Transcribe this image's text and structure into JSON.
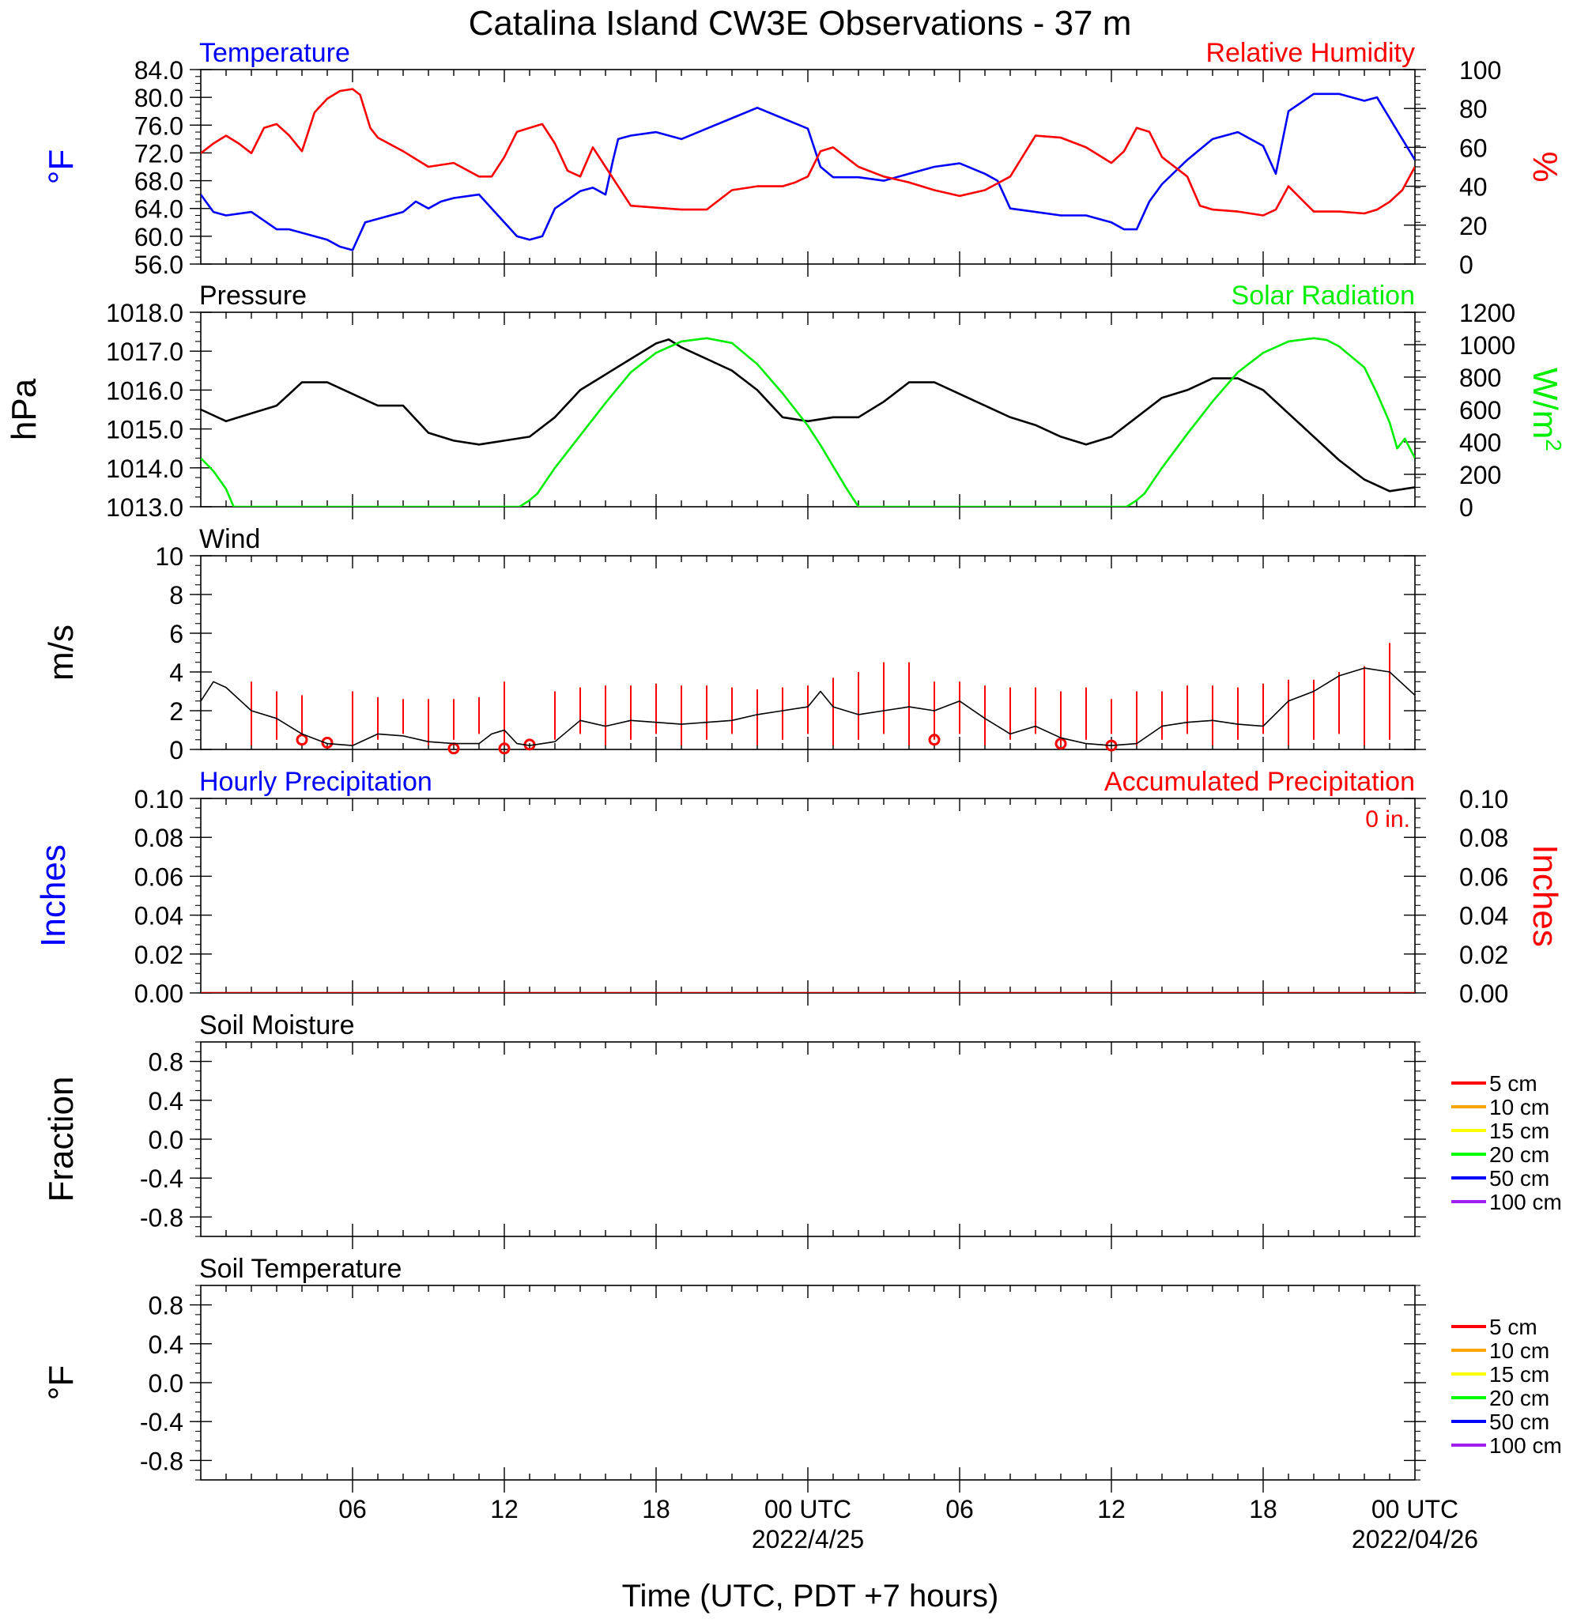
{
  "title": "Catalina Island CW3E Observations - 37 m",
  "xaxis": {
    "label": "Time (UTC, PDT +7 hours)",
    "range_hours": [
      0,
      48
    ],
    "ticks": [
      {
        "h": 6,
        "label": "06"
      },
      {
        "h": 12,
        "label": "12"
      },
      {
        "h": 18,
        "label": "18"
      },
      {
        "h": 24,
        "label": "00 UTC",
        "sub": "2022/4/25"
      },
      {
        "h": 30,
        "label": "06"
      },
      {
        "h": 36,
        "label": "12"
      },
      {
        "h": 42,
        "label": "18"
      },
      {
        "h": 48,
        "label": "00 UTC",
        "sub": "2022/04/26"
      }
    ]
  },
  "chart_data": [
    {
      "panel": "temperature_humidity",
      "type": "line",
      "title_left": "Temperature",
      "title_right": "Relative Humidity",
      "ylabel_left": "°F",
      "ylabel_right": "%",
      "ylim_left": [
        56,
        84
      ],
      "ylim_right": [
        0,
        100
      ],
      "yticks_left": [
        "56.0",
        "60.0",
        "64.0",
        "68.0",
        "72.0",
        "76.0",
        "80.0",
        "84.0"
      ],
      "yticks_right": [
        "0",
        "20",
        "40",
        "60",
        "80",
        "100"
      ],
      "colors": {
        "left": "#0000ff",
        "right": "#ff0000"
      },
      "series": [
        {
          "name": "Temperature",
          "axis": "left",
          "x": [
            0,
            0.5,
            1,
            2,
            3,
            3.5,
            4,
            5,
            5.5,
            6,
            6.5,
            7,
            8,
            8.5,
            9,
            9.5,
            10,
            11,
            11.5,
            12,
            12.5,
            13,
            13.5,
            14,
            15,
            15.5,
            16,
            16.3,
            16.5,
            17,
            18,
            19,
            20,
            21,
            22,
            23,
            24,
            24.5,
            25,
            26,
            27,
            28,
            29,
            30,
            31,
            31.5,
            32,
            33,
            34,
            35,
            36,
            36.5,
            37,
            37.5,
            38,
            39,
            40,
            41,
            42,
            42.5,
            43,
            44,
            45,
            46,
            46.5,
            47,
            47.5,
            48
          ],
          "y": [
            66,
            63.5,
            63.0,
            63.5,
            61.0,
            61.0,
            60.5,
            59.5,
            58.5,
            58.0,
            62,
            62.5,
            63.5,
            65,
            64,
            65,
            65.5,
            66,
            64,
            62,
            60,
            59.5,
            60.0,
            64,
            66.5,
            67.0,
            66,
            71,
            74,
            74.5,
            75,
            74,
            75.5,
            77,
            78.5,
            77,
            75.5,
            70,
            68.5,
            68.5,
            68.0,
            69.0,
            70,
            70.5,
            69,
            68,
            64,
            63.5,
            63,
            63,
            62,
            61,
            61,
            65,
            67.5,
            71,
            74,
            75,
            73,
            69,
            78,
            80.5,
            80.5,
            79.5,
            80.0,
            77,
            74,
            71
          ]
        },
        {
          "name": "Relative Humidity",
          "axis": "right",
          "x": [
            0,
            0.5,
            1,
            1.5,
            2,
            2.5,
            3,
            3.5,
            4,
            4.5,
            5,
            5.5,
            6,
            6.3,
            6.7,
            7,
            8,
            9,
            10,
            11,
            11.5,
            12,
            12.5,
            13,
            13.5,
            14,
            14.5,
            15,
            15.5,
            16,
            16.5,
            17,
            18,
            19,
            20,
            21,
            22,
            23,
            23.5,
            24,
            24.5,
            25,
            25.5,
            26,
            27,
            28,
            29,
            30,
            31,
            32,
            33,
            34,
            35,
            36,
            36.5,
            37,
            37.5,
            38,
            38.5,
            39,
            39.5,
            40,
            41,
            42,
            42.5,
            43,
            44,
            45,
            46,
            46.5,
            47,
            47.5,
            48
          ],
          "y": [
            57,
            62,
            66,
            62,
            57,
            70,
            72,
            66,
            58,
            78,
            85,
            89,
            90,
            87,
            70,
            65,
            58,
            50,
            52,
            45,
            45,
            55,
            68,
            70,
            72,
            62,
            48,
            45,
            60,
            50,
            40,
            30,
            29,
            28,
            28,
            38,
            40,
            40,
            42,
            45,
            58,
            60,
            55,
            50,
            45,
            42,
            38,
            35,
            38,
            45,
            66,
            65,
            60,
            52,
            58,
            70,
            68,
            55,
            50,
            45,
            30,
            28,
            27,
            25,
            28,
            40,
            27,
            27,
            26,
            28,
            32,
            38,
            50
          ]
        }
      ]
    },
    {
      "panel": "pressure_solar",
      "type": "line",
      "title_left": "Pressure",
      "title_right": "Solar Radiation",
      "ylabel_left": "hPa",
      "ylabel_right": "W/m",
      "ylabel_right_sup": "2",
      "ylim_left": [
        1013,
        1018
      ],
      "ylim_right": [
        0,
        1200
      ],
      "yticks_left": [
        "1013.0",
        "1014.0",
        "1015.0",
        "1016.0",
        "1017.0",
        "1018.0"
      ],
      "yticks_right": [
        "0",
        "200",
        "400",
        "600",
        "800",
        "1000",
        "1200"
      ],
      "colors": {
        "left": "#000000",
        "right": "#00ee00"
      },
      "series": [
        {
          "name": "Pressure",
          "axis": "left",
          "x": [
            0,
            1,
            2,
            3,
            4,
            5,
            6,
            7,
            8,
            9,
            10,
            11,
            12,
            13,
            14,
            15,
            16,
            17,
            18,
            18.5,
            19,
            20,
            21,
            22,
            23,
            24,
            25,
            26,
            27,
            28,
            29,
            30,
            31,
            32,
            33,
            34,
            35,
            36,
            37,
            38,
            39,
            40,
            41,
            42,
            43,
            44,
            45,
            46,
            47,
            48
          ],
          "y": [
            1015.5,
            1015.2,
            1015.4,
            1015.6,
            1016.2,
            1016.2,
            1015.9,
            1015.6,
            1015.6,
            1014.9,
            1014.7,
            1014.6,
            1014.7,
            1014.8,
            1015.3,
            1016.0,
            1016.4,
            1016.8,
            1017.2,
            1017.3,
            1017.1,
            1016.8,
            1016.5,
            1016.0,
            1015.3,
            1015.2,
            1015.3,
            1015.3,
            1015.7,
            1016.2,
            1016.2,
            1015.9,
            1015.6,
            1015.3,
            1015.1,
            1014.8,
            1014.6,
            1014.8,
            1015.3,
            1015.8,
            1016.0,
            1016.3,
            1016.3,
            1016.0,
            1015.4,
            1014.8,
            1014.2,
            1013.7,
            1013.4,
            1013.5
          ]
        },
        {
          "name": "Solar Radiation",
          "axis": "right",
          "x": [
            0,
            0.5,
            1,
            1.3,
            2,
            4,
            6,
            8,
            10,
            12,
            12.2,
            12.6,
            13,
            13.3,
            14,
            15,
            16,
            17,
            18,
            19,
            20,
            21,
            22,
            23,
            24,
            24.5,
            25,
            25.5,
            26,
            30,
            36,
            36.6,
            37,
            37.3,
            38,
            39,
            40,
            41,
            42,
            43,
            44,
            44.5,
            45,
            46,
            46.5,
            47,
            47.3,
            47.6,
            48
          ],
          "y": [
            300,
            220,
            110,
            0,
            0,
            0,
            0,
            0,
            0,
            0,
            0,
            0,
            40,
            80,
            240,
            440,
            640,
            830,
            950,
            1020,
            1040,
            1010,
            880,
            700,
            500,
            380,
            250,
            120,
            0,
            0,
            0,
            0,
            40,
            80,
            240,
            450,
            650,
            830,
            950,
            1020,
            1040,
            1030,
            990,
            860,
            700,
            520,
            360,
            420,
            300
          ]
        }
      ]
    },
    {
      "panel": "wind",
      "type": "line",
      "title_left": "Wind",
      "ylabel_left": "m/s",
      "ylim_left": [
        0,
        10
      ],
      "yticks_left": [
        "0",
        "2",
        "4",
        "6",
        "8",
        "10"
      ],
      "colors": {
        "left": "#000000",
        "barbs": "#ff0000"
      },
      "series": [
        {
          "name": "Wind",
          "axis": "left",
          "x": [
            0,
            0.5,
            1,
            2,
            3,
            4,
            5,
            6,
            7,
            8,
            9,
            10,
            11,
            11.5,
            12,
            12.5,
            13,
            14,
            15,
            16,
            17,
            18,
            19,
            20,
            21,
            22,
            23,
            24,
            24.5,
            25,
            26,
            27,
            28,
            29,
            30,
            31,
            32,
            33,
            34,
            35,
            36,
            37,
            38,
            39,
            40,
            41,
            42,
            43,
            44,
            45,
            46,
            47,
            48
          ],
          "y": [
            2.5,
            3.5,
            3.2,
            2.0,
            1.6,
            0.8,
            0.3,
            0.2,
            0.8,
            0.7,
            0.4,
            0.3,
            0.3,
            0.8,
            1.0,
            0.3,
            0.2,
            0.4,
            1.5,
            1.2,
            1.5,
            1.4,
            1.3,
            1.4,
            1.5,
            1.8,
            2.0,
            2.2,
            3.0,
            2.2,
            1.8,
            2.0,
            2.2,
            2.0,
            2.5,
            1.6,
            0.8,
            1.2,
            0.6,
            0.3,
            0.2,
            0.3,
            1.2,
            1.4,
            1.5,
            1.3,
            1.2,
            2.5,
            3.0,
            3.8,
            4.2,
            4.0,
            2.8
          ]
        }
      ],
      "barbs_x": [
        2,
        3,
        4,
        6,
        7,
        8,
        9,
        10,
        11,
        12,
        14,
        15,
        16,
        17,
        18,
        19,
        20,
        21,
        22,
        23,
        24,
        25,
        26,
        27,
        28,
        29,
        30,
        31,
        32,
        33,
        34,
        35,
        36,
        37,
        38,
        39,
        40,
        41,
        42,
        43,
        44,
        45,
        46,
        47
      ],
      "barbs_top": [
        3.5,
        3.0,
        2.8,
        3.0,
        2.7,
        2.6,
        2.6,
        2.6,
        2.7,
        3.5,
        3.0,
        3.2,
        3.3,
        3.3,
        3.4,
        3.3,
        3.3,
        3.2,
        3.1,
        3.2,
        3.3,
        3.7,
        4.0,
        4.5,
        4.5,
        3.5,
        3.5,
        3.3,
        3.2,
        3.2,
        3.0,
        3.2,
        2.6,
        3.0,
        3.0,
        3.3,
        3.3,
        3.2,
        3.4,
        3.6,
        3.6,
        4.0,
        4.3,
        5.5
      ],
      "calm_x": [
        4,
        5,
        10,
        12,
        13,
        29,
        34,
        36
      ],
      "calm_y": [
        0.5,
        0.35,
        0.05,
        0.05,
        0.25,
        0.5,
        0.3,
        0.2
      ]
    },
    {
      "panel": "precipitation",
      "type": "line",
      "title_left": "Hourly Precipitation",
      "title_right": "Accumulated Precipitation",
      "annotation": "0 in.",
      "ylabel_left": "Inches",
      "ylabel_right": "Inches",
      "ylim_left": [
        0,
        0.1
      ],
      "ylim_right": [
        0,
        0.1
      ],
      "yticks_left": [
        "0.00",
        "0.02",
        "0.04",
        "0.06",
        "0.08",
        "0.10"
      ],
      "yticks_right": [
        "0.00",
        "0.02",
        "0.04",
        "0.06",
        "0.08",
        "0.10"
      ],
      "colors": {
        "left": "#0000ff",
        "right": "#ff0000",
        "trace": "#cc0000"
      },
      "series": [
        {
          "name": "Accumulated Precipitation",
          "axis": "right",
          "x": [
            0,
            48
          ],
          "y": [
            0,
            0
          ]
        }
      ]
    },
    {
      "panel": "soil_moisture",
      "type": "line",
      "title_left": "Soil Moisture",
      "ylabel_left": "Fraction",
      "ylim_left": [
        -1,
        1
      ],
      "yticks_left": [
        "-0.8",
        "-0.4",
        "0.0",
        "0.4",
        "0.8"
      ],
      "ytick_values": [
        -0.8,
        -0.4,
        0.0,
        0.4,
        0.8
      ],
      "legend": [
        "5 cm",
        "10 cm",
        "15 cm",
        "20 cm",
        "50 cm",
        "100 cm"
      ],
      "legend_colors": [
        "#ff0000",
        "#ffa500",
        "#ffff00",
        "#00ff00",
        "#0000ff",
        "#a020f0"
      ],
      "series": []
    },
    {
      "panel": "soil_temperature",
      "type": "line",
      "title_left": "Soil Temperature",
      "ylabel_left": "°F",
      "ylim_left": [
        -1,
        1
      ],
      "yticks_left": [
        "-0.8",
        "-0.4",
        "0.0",
        "0.4",
        "0.8"
      ],
      "ytick_values": [
        -0.8,
        -0.4,
        0.0,
        0.4,
        0.8
      ],
      "legend": [
        "5 cm",
        "10 cm",
        "15 cm",
        "20 cm",
        "50 cm",
        "100 cm"
      ],
      "legend_colors": [
        "#ff0000",
        "#ffa500",
        "#ffff00",
        "#00ff00",
        "#0000ff",
        "#a020f0"
      ],
      "series": []
    }
  ]
}
